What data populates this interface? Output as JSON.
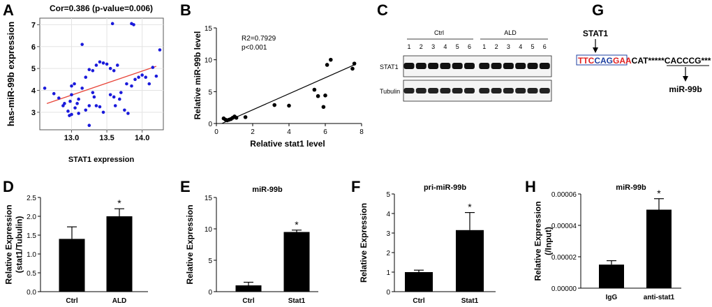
{
  "figure": {
    "panel_letters": [
      "A",
      "B",
      "C",
      "D",
      "E",
      "F",
      "G",
      "H"
    ],
    "colors": {
      "point_blue": "#1a1adb",
      "fit_red": "#e8463a",
      "bar": "#000000",
      "seq_red": "#e02020",
      "seq_blue": "#1d3fa0"
    }
  },
  "chart_data": [
    {
      "id": "A",
      "type": "scatter",
      "title": "Cor=0.386 (p-value=0.006)",
      "xlabel": "STAT1 expression",
      "ylabel": "has-miR-99b expression",
      "xlim": [
        12.55,
        14.3
      ],
      "ylim": [
        2.2,
        7.3
      ],
      "xticks": [
        13.0,
        13.5,
        14.0
      ],
      "xticklabels": [
        "13.0",
        "13.5",
        "14.0"
      ],
      "yticks": [
        3,
        4,
        5,
        6,
        7
      ],
      "yticklabels": [
        "3",
        "4",
        "5",
        "6",
        "7"
      ],
      "fit": {
        "x1": 12.65,
        "y1": 3.4,
        "x2": 14.2,
        "y2": 5.1
      },
      "points": [
        [
          12.62,
          4.1
        ],
        [
          12.75,
          3.85
        ],
        [
          12.82,
          3.65
        ],
        [
          12.9,
          3.4
        ],
        [
          12.95,
          3.05
        ],
        [
          12.97,
          2.85
        ],
        [
          13.0,
          2.9
        ],
        [
          13.05,
          3.2
        ],
        [
          13.08,
          3.4
        ],
        [
          12.98,
          3.5
        ],
        [
          13.1,
          3.6
        ],
        [
          13.0,
          4.2
        ],
        [
          13.04,
          4.3
        ],
        [
          13.15,
          4.1
        ],
        [
          13.2,
          4.6
        ],
        [
          13.25,
          4.95
        ],
        [
          13.3,
          4.9
        ],
        [
          13.35,
          5.15
        ],
        [
          13.45,
          5.25
        ],
        [
          13.4,
          5.3
        ],
        [
          13.5,
          5.2
        ],
        [
          13.55,
          5.0
        ],
        [
          13.6,
          4.9
        ],
        [
          13.65,
          5.15
        ],
        [
          13.3,
          3.9
        ],
        [
          13.32,
          3.7
        ],
        [
          13.25,
          3.3
        ],
        [
          13.45,
          3.0
        ],
        [
          13.55,
          3.8
        ],
        [
          13.6,
          3.7
        ],
        [
          13.68,
          3.6
        ],
        [
          13.75,
          3.1
        ],
        [
          13.8,
          2.95
        ],
        [
          13.78,
          4.3
        ],
        [
          13.85,
          4.2
        ],
        [
          13.9,
          4.5
        ],
        [
          13.95,
          4.6
        ],
        [
          14.0,
          4.7
        ],
        [
          14.05,
          4.6
        ],
        [
          14.1,
          4.3
        ],
        [
          13.2,
          3.1
        ],
        [
          13.25,
          2.4
        ],
        [
          13.35,
          3.3
        ],
        [
          13.4,
          3.25
        ],
        [
          13.15,
          6.1
        ],
        [
          13.58,
          7.05
        ],
        [
          13.85,
          7.05
        ],
        [
          13.88,
          7.0
        ],
        [
          14.2,
          4.65
        ],
        [
          14.25,
          5.85
        ],
        [
          13.0,
          3.8
        ],
        [
          12.88,
          3.3
        ],
        [
          13.1,
          2.95
        ],
        [
          13.7,
          3.9
        ],
        [
          14.15,
          5.05
        ],
        [
          13.62,
          3.3
        ]
      ]
    },
    {
      "id": "B",
      "type": "scatter",
      "xlabel": "Relative stat1 level",
      "ylabel": "Relative miR-99b level",
      "annotation": [
        "R2=0.7929",
        "p<0.001"
      ],
      "xlim": [
        0,
        8
      ],
      "ylim": [
        0,
        15
      ],
      "xticks": [
        0,
        2,
        4,
        6,
        8
      ],
      "xticklabels": [
        "0",
        "2",
        "4",
        "6",
        "8"
      ],
      "yticks": [
        0,
        5,
        10,
        15
      ],
      "yticklabels": [
        "0",
        "5",
        "10",
        "15"
      ],
      "fit": {
        "x1": 0.3,
        "y1": 0.0,
        "x2": 7.6,
        "y2": 9.2
      },
      "points": [
        [
          0.4,
          0.8
        ],
        [
          0.6,
          0.5
        ],
        [
          0.7,
          0.6
        ],
        [
          0.8,
          0.7
        ],
        [
          0.9,
          0.9
        ],
        [
          1.0,
          1.1
        ],
        [
          1.1,
          0.9
        ],
        [
          0.5,
          0.6
        ],
        [
          1.6,
          1.0
        ],
        [
          3.2,
          2.9
        ],
        [
          4.0,
          2.8
        ],
        [
          5.4,
          5.3
        ],
        [
          5.6,
          4.3
        ],
        [
          5.9,
          2.6
        ],
        [
          6.0,
          4.4
        ],
        [
          6.1,
          9.2
        ],
        [
          6.3,
          10.0
        ],
        [
          7.5,
          8.6
        ],
        [
          7.6,
          9.4
        ]
      ]
    },
    {
      "id": "D",
      "type": "bar",
      "ylabel": "Relative Expression\n(stat1/Tubulin)",
      "ylabel_lines": [
        "Relative Expression",
        "(stat1/Tubulin)"
      ],
      "categories": [
        "Ctrl",
        "ALD"
      ],
      "values": [
        1.4,
        2.0
      ],
      "errors": [
        0.32,
        0.2
      ],
      "ylim": [
        0,
        2.5
      ],
      "yticks": [
        0,
        0.5,
        1.0,
        1.5,
        2.0,
        2.5
      ],
      "yticklabels": [
        "0.0",
        "0.5",
        "1.0",
        "1.5",
        "2.0",
        "2.5"
      ],
      "sig": [
        "",
        "*"
      ],
      "title": ""
    },
    {
      "id": "E",
      "type": "bar",
      "title": "miR-99b",
      "ylabel": "Relative Expression",
      "categories": [
        "Ctrl",
        "Stat1"
      ],
      "values": [
        1.0,
        9.5
      ],
      "errors": [
        0.5,
        0.3
      ],
      "ylim": [
        0,
        15
      ],
      "yticks": [
        0,
        5,
        10,
        15
      ],
      "yticklabels": [
        "0",
        "5",
        "10",
        "15"
      ],
      "sig": [
        "",
        "*"
      ]
    },
    {
      "id": "F",
      "type": "bar",
      "title": "pri-miR-99b",
      "ylabel": "Relative Expression",
      "categories": [
        "Ctrl",
        "Stat1"
      ],
      "values": [
        1.0,
        3.15
      ],
      "errors": [
        0.1,
        0.9
      ],
      "ylim": [
        0,
        5
      ],
      "yticks": [
        0,
        1,
        2,
        3,
        4,
        5
      ],
      "yticklabels": [
        "0",
        "1",
        "2",
        "3",
        "4",
        "5"
      ],
      "sig": [
        "",
        "*"
      ]
    },
    {
      "id": "H",
      "type": "bar",
      "title": "miR-99b",
      "ylabel_lines": [
        "Relative Expression",
        "(/Input)"
      ],
      "categories": [
        "IgG",
        "anti-stat1"
      ],
      "values": [
        1.5e-05,
        5e-05
      ],
      "errors": [
        2.5e-06,
        7e-06
      ],
      "ylim": [
        0,
        6e-05
      ],
      "yticks": [
        0,
        2e-05,
        4e-05,
        6e-05
      ],
      "yticklabels": [
        "0.00000",
        "0.00002",
        "0.00004",
        "0.00006"
      ],
      "sig": [
        "",
        "*"
      ]
    }
  ],
  "blot": {
    "groups": [
      "Ctrl",
      "ALD"
    ],
    "lanes": [
      "1",
      "2",
      "3",
      "4",
      "5",
      "6",
      "1",
      "2",
      "3",
      "4",
      "5",
      "6"
    ],
    "rows": [
      "STAT1",
      "Tubulin"
    ]
  },
  "sequence": {
    "tf_label": "STAT1",
    "mirna_label": "miR-99b",
    "seq_red1": "TTC",
    "seq_blue1": "CAG",
    "seq_red2": "GAA",
    "seq_rest": "CAT*****",
    "seq_underlined": "CACCCG",
    "seq_tail": "***"
  }
}
